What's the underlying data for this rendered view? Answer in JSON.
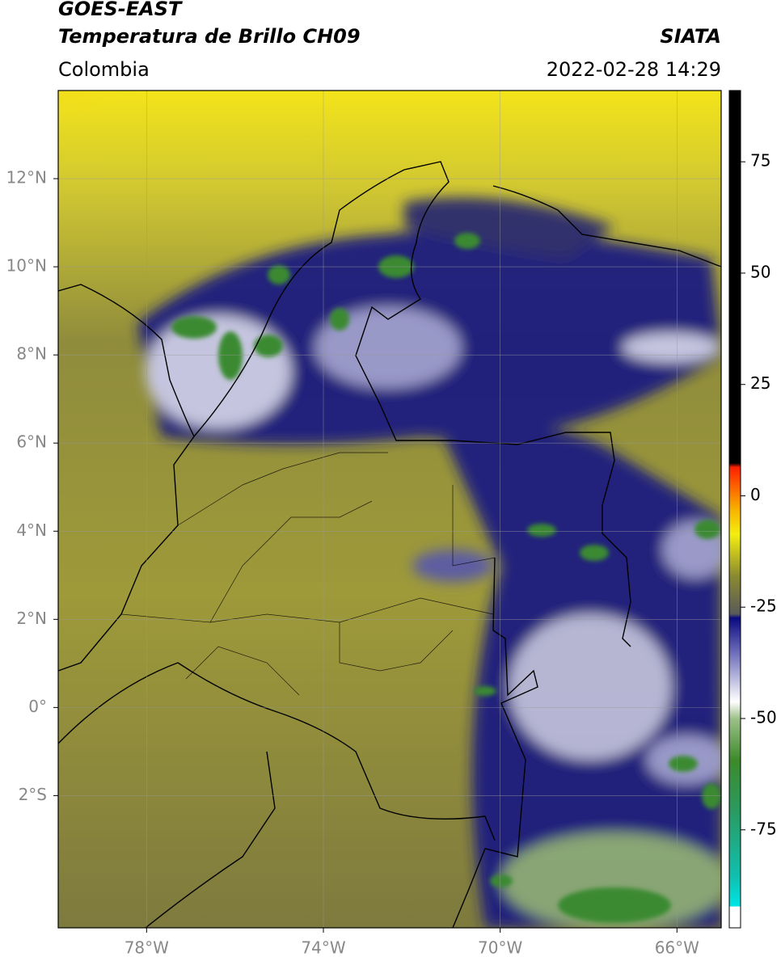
{
  "header": {
    "title": "GOES-EAST",
    "subtitle": "Temperatura de Brillo CH09",
    "source": "SIATA",
    "region": "Colombia",
    "datetime": "2022-02-28 14:29"
  },
  "map": {
    "xlim": [
      -80,
      -65
    ],
    "ylim": [
      -5,
      14
    ],
    "xticks": [
      {
        "value": -78,
        "label": "78°W"
      },
      {
        "value": -74,
        "label": "74°W"
      },
      {
        "value": -70,
        "label": "70°W"
      },
      {
        "value": -66,
        "label": "66°W"
      }
    ],
    "yticks": [
      {
        "value": 12,
        "label": "12°N"
      },
      {
        "value": 10,
        "label": "10°N"
      },
      {
        "value": 8,
        "label": "8°N"
      },
      {
        "value": 6,
        "label": "6°N"
      },
      {
        "value": 4,
        "label": "4°N"
      },
      {
        "value": 2,
        "label": "2°N"
      },
      {
        "value": 0,
        "label": "0°"
      },
      {
        "value": -2,
        "label": "2°S"
      }
    ]
  },
  "colorbar": {
    "lim": [
      -97,
      91
    ],
    "ticks": [
      75,
      50,
      25,
      0,
      -25,
      -50,
      -75
    ]
  }
}
